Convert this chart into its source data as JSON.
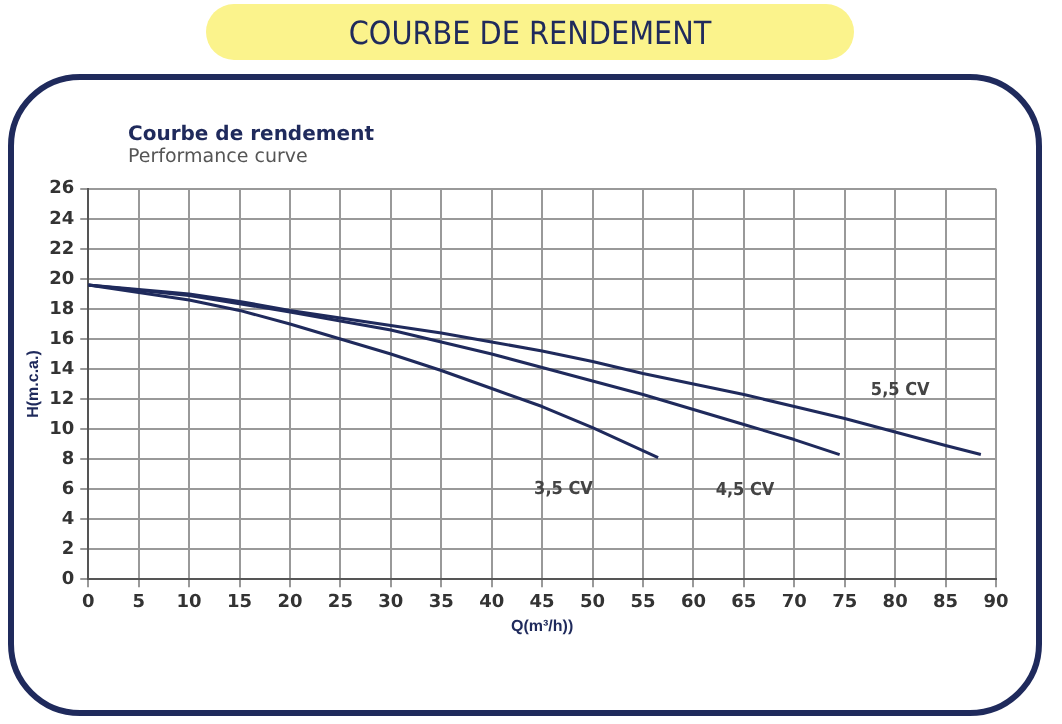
{
  "chart_data": {
    "type": "line",
    "title": "COURBE DE RENDEMENT",
    "subtitle": "Courbe de rendement",
    "annotations": [
      "Performance curve"
    ],
    "xlabel": "Q(m³/h))",
    "ylabel": "H(m.c.a.)",
    "series": [
      {
        "name": "3,5 CV",
        "color": "#1f2a5c",
        "x": [
          0,
          5,
          10,
          15,
          20,
          25,
          30,
          35,
          40,
          45,
          50,
          56.5
        ],
        "values": [
          19.6,
          19.1,
          18.6,
          17.9,
          17.0,
          16.0,
          15.0,
          13.9,
          12.7,
          11.5,
          10.1,
          8.1
        ]
      },
      {
        "name": "4,5 CV",
        "color": "#1f2a5c",
        "x": [
          0,
          10,
          20,
          30,
          35,
          40,
          45,
          50,
          55,
          60,
          65,
          70,
          74.5
        ],
        "values": [
          19.6,
          18.9,
          17.8,
          16.6,
          15.8,
          15.0,
          14.1,
          13.2,
          12.3,
          11.3,
          10.3,
          9.3,
          8.3
        ]
      },
      {
        "name": "5,5 CV",
        "color": "#1f2a5c",
        "x": [
          0,
          10,
          15,
          20,
          30,
          35,
          40,
          45,
          50,
          55,
          60,
          65,
          70,
          75,
          80,
          85,
          88.5
        ],
        "values": [
          19.6,
          19.0,
          18.5,
          17.9,
          16.9,
          16.4,
          15.8,
          15.2,
          14.5,
          13.7,
          13.0,
          12.3,
          11.5,
          10.7,
          9.8,
          8.9,
          8.3
        ]
      }
    ],
    "xlim": [
      0,
      90
    ],
    "xticks": [
      0,
      5,
      10,
      15,
      20,
      25,
      30,
      35,
      40,
      45,
      50,
      55,
      60,
      65,
      70,
      75,
      80,
      85,
      90
    ],
    "ylim": [
      0,
      26
    ],
    "yticks": [
      0,
      2,
      4,
      6,
      8,
      10,
      12,
      14,
      16,
      18,
      20,
      22,
      24,
      26
    ],
    "grid": true,
    "legend": false,
    "marker": "none",
    "line_style": "solid"
  }
}
